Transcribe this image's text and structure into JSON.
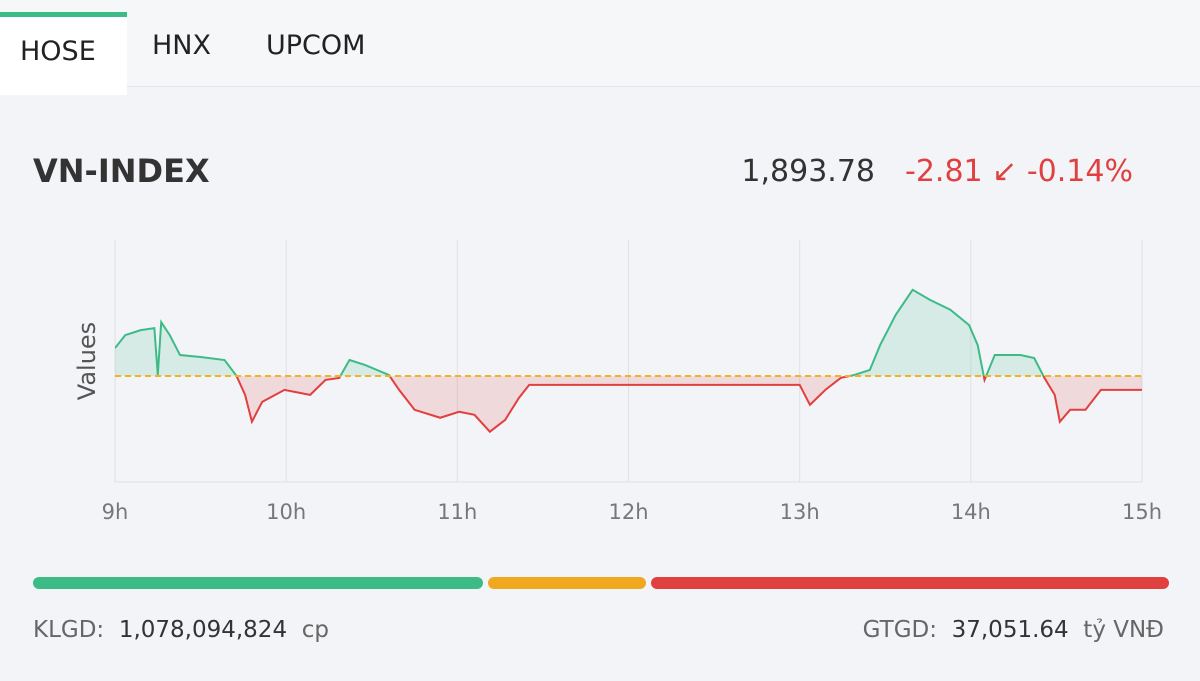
{
  "tabs": [
    "HOSE",
    "HNX",
    "UPCOM"
  ],
  "index": {
    "name": "VN-INDEX",
    "value": "1,893.78",
    "change": "-2.81",
    "percent": "-0.14%"
  },
  "chart_data": {
    "type": "line",
    "y_label": "Values",
    "x": [
      9.0,
      9.06,
      9.15,
      9.23,
      9.25,
      9.27,
      9.32,
      9.38,
      9.5,
      9.64,
      9.71,
      9.76,
      9.8,
      9.86,
      9.99,
      10.14,
      10.23,
      10.31,
      10.37,
      10.46,
      10.6,
      10.66,
      10.75,
      10.9,
      11.01,
      11.1,
      11.19,
      11.28,
      11.36,
      11.42,
      11.51,
      13.0,
      13.06,
      13.15,
      13.24,
      13.32,
      13.41,
      13.47,
      13.56,
      13.66,
      13.76,
      13.88,
      13.99,
      14.04,
      14.08,
      14.14,
      14.29,
      14.37,
      14.43,
      14.49,
      14.52,
      14.58,
      14.67,
      14.76,
      15.0
    ],
    "values": [
      1902.2,
      1904.8,
      1905.8,
      1906.2,
      1896.8,
      1907.4,
      1904.8,
      1900.8,
      1900.4,
      1899.8,
      1896.6,
      1892.8,
      1887.4,
      1891.4,
      1893.8,
      1892.8,
      1895.8,
      1896.2,
      1899.8,
      1898.8,
      1896.8,
      1893.8,
      1889.8,
      1888.2,
      1889.4,
      1888.8,
      1885.4,
      1887.8,
      1892.2,
      1894.8,
      1894.8,
      1894.8,
      1890.8,
      1893.8,
      1896.2,
      1896.8,
      1897.8,
      1902.8,
      1908.8,
      1913.9,
      1911.9,
      1909.9,
      1906.8,
      1902.8,
      1895.8,
      1900.8,
      1900.8,
      1900.2,
      1896.2,
      1892.8,
      1887.4,
      1889.8,
      1889.8,
      1893.8,
      1893.8
    ],
    "reference_line": 1896.59,
    "up_color": "#3dbb87",
    "down_color": "#e0403f",
    "reference_color": "#f0b323",
    "xlim": [
      9,
      15
    ],
    "ylim": [
      1875.3,
      1923.9
    ],
    "xticks": [
      {
        "value": 9,
        "label": "9h"
      },
      {
        "value": 10,
        "label": "10h"
      },
      {
        "value": 11,
        "label": "11h"
      },
      {
        "value": 12,
        "label": "12h"
      },
      {
        "value": 13,
        "label": "13h"
      },
      {
        "value": 14,
        "label": "14h"
      },
      {
        "value": 15,
        "label": "15h"
      }
    ],
    "grid": true
  },
  "breadth": {
    "values": [
      40,
      14,
      46
    ],
    "colors": [
      "#3dbb87",
      "#f0a81e",
      "#e0403f"
    ]
  },
  "footer": {
    "volume_label": "KLGD:",
    "volume": "1,078,094,824",
    "volume_unit": "cp",
    "value_label": "GTGD:",
    "value": "37,051.64",
    "value_unit": "tỷ VNĐ"
  }
}
